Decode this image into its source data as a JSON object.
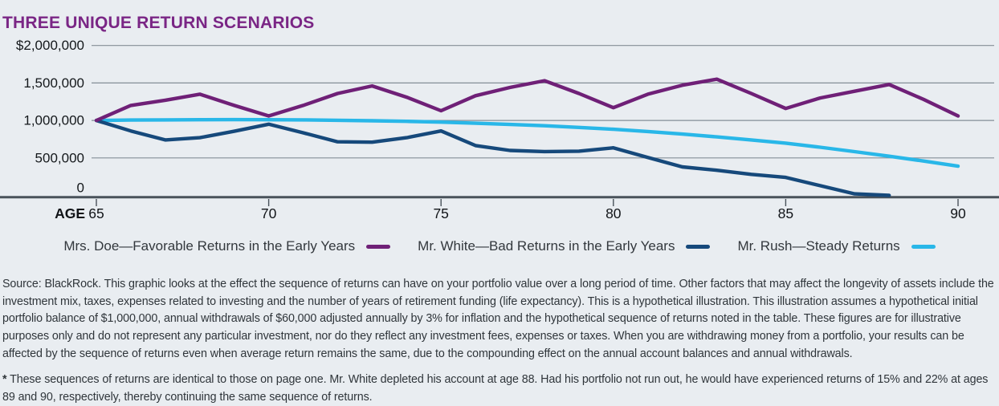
{
  "title": "THREE UNIQUE RETURN SCENARIOS",
  "chart_data": {
    "type": "line",
    "title": "THREE UNIQUE RETURN SCENARIOS",
    "xlabel": "AGE",
    "ylabel": "",
    "x": [
      65,
      66,
      67,
      68,
      69,
      70,
      71,
      72,
      73,
      74,
      75,
      76,
      77,
      78,
      79,
      80,
      81,
      82,
      83,
      84,
      85,
      86,
      87,
      88,
      89,
      90
    ],
    "x_ticks": [
      65,
      70,
      75,
      80,
      85,
      90
    ],
    "ylim": [
      0,
      2000000
    ],
    "grid": true,
    "legend_position": "bottom",
    "y_ticks": [
      {
        "label": "$2,000,000",
        "value": 2000000
      },
      {
        "label": "1,500,000",
        "value": 1500000
      },
      {
        "label": "1,000,000",
        "value": 1000000
      },
      {
        "label": "500,000",
        "value": 500000
      },
      {
        "label": "0",
        "value": 0
      }
    ],
    "age_axis_label": "AGE",
    "series": [
      {
        "key": "mrs-doe",
        "name": "Mrs. Doe—Favorable Returns in the Early Years",
        "color": "#6F2077",
        "values": [
          1000000,
          1200000,
          1270000,
          1350000,
          1200000,
          1060000,
          1200000,
          1360000,
          1460000,
          1310000,
          1130000,
          1330000,
          1440000,
          1530000,
          1360000,
          1170000,
          1350000,
          1470000,
          1550000,
          1360000,
          1160000,
          1300000,
          1390000,
          1480000,
          1280000,
          1060000
        ]
      },
      {
        "key": "mr-white",
        "name": "Mr. White—Bad Returns in the Early Years",
        "color": "#16497B",
        "values": [
          1000000,
          860000,
          740000,
          770000,
          855000,
          950000,
          835000,
          715000,
          710000,
          770000,
          860000,
          665000,
          600000,
          585000,
          590000,
          635000,
          505000,
          380000,
          335000,
          280000,
          240000,
          130000,
          20000,
          0,
          null,
          null
        ]
      },
      {
        "key": "mr-rush",
        "name": "Mr. Rush—Steady Returns",
        "color": "#29B7E8",
        "values": [
          1000000,
          1005000,
          1008000,
          1010000,
          1011000,
          1010000,
          1007000,
          1002000,
          996000,
          988000,
          978000,
          963000,
          947000,
          929000,
          907000,
          882000,
          852000,
          818000,
          780000,
          740000,
          697000,
          642000,
          584000,
          522000,
          458000,
          390000
        ]
      }
    ]
  },
  "source_note": "Source: BlackRock. This graphic looks at the effect the sequence of returns can have on your portfolio value over a long period of time. Other factors that may affect the longevity of assets include the investment mix, taxes, expenses related to investing and the number of years of retirement funding (life expectancy). This is a hypothetical illustration. This illustration assumes a hypothetical initial portfolio balance of $1,000,000, annual withdrawals of $60,000 adjusted annually by 3% for inflation and the hypothetical sequence of returns noted in the table. These figures are for illustrative purposes only and do not represent any particular investment, nor do they reflect any investment fees, expenses or taxes. When you are withdrawing money from a portfolio, your results can be affected by the sequence of returns even when average return remains the same, due to the compounding effect on the annual account balances and annual withdrawals.",
  "footnote": {
    "star": "*",
    "text": " These sequences of returns are identical to those on page one. Mr. White depleted his account at age 88. Had his portfolio not run out, he would have experienced returns of 15% and 22% at ages 89 and 90, respectively, thereby continuing the same sequence of returns."
  }
}
